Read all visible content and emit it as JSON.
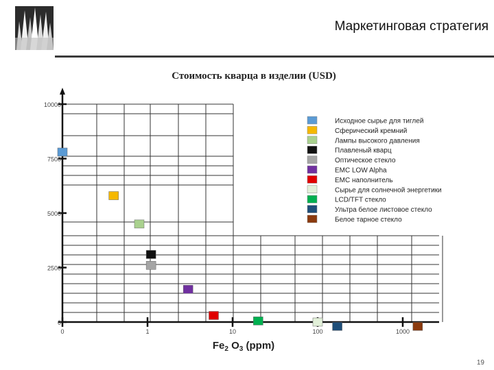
{
  "slide": {
    "title": "Маркетинговая стратегия",
    "page_number": "19"
  },
  "chart_data": {
    "type": "scatter",
    "title": "Стоимость кварца в изделии (USD)",
    "xlabel_parts": [
      "Fe",
      "2",
      " O",
      "3",
      " (ppm)"
    ],
    "xscale": "log",
    "x_ticks": [
      {
        "value": 0.1,
        "label": "0"
      },
      {
        "value": 1,
        "label": "1"
      },
      {
        "value": 10,
        "label": "10"
      },
      {
        "value": 100,
        "label": "100"
      },
      {
        "value": 1000,
        "label": "1000"
      }
    ],
    "y_ticks": [
      {
        "value": 0,
        "label": "0"
      },
      {
        "value": 2500,
        "label": "2500"
      },
      {
        "value": 5000,
        "label": "5000"
      },
      {
        "value": 7500,
        "label": "7500"
      },
      {
        "value": 10000,
        "label": "10000"
      }
    ],
    "ylim": [
      0,
      10000
    ],
    "grid": true,
    "legend_position": "right",
    "series": [
      {
        "name": "Исходное сырье для тиглей",
        "color": "#5b9bd5",
        "x": 0.1,
        "y": 7800
      },
      {
        "name": "Сферический кремний",
        "color": "#f5b800",
        "x": 0.4,
        "y": 5800
      },
      {
        "name": "Лампы высокого давления",
        "color": "#a9d18e",
        "x": 0.8,
        "y": 4500
      },
      {
        "name": "Плавленый кварц",
        "color": "#111111",
        "x": 1.1,
        "y": 3100
      },
      {
        "name": "Оптическое стекло",
        "color": "#a5a5a5",
        "x": 1.1,
        "y": 2600
      },
      {
        "name": "EMC LOW Alpha",
        "color": "#7030a0",
        "x": 3,
        "y": 1500
      },
      {
        "name": "EMC наполнитель",
        "color": "#e00000",
        "x": 6,
        "y": 300
      },
      {
        "name": "Сырье для солнечной энергетики",
        "color": "#e2f0d9",
        "x": 100,
        "y": 0
      },
      {
        "name": "LCD/TFT стекло",
        "color": "#00b050",
        "x": 20,
        "y": 50
      },
      {
        "name": "Ультра белое листовое стекло",
        "color": "#1f4e79",
        "x": 170,
        "y": -200
      },
      {
        "name": "Белое тарное стекло",
        "color": "#8b3a0e",
        "x": 1500,
        "y": -200
      }
    ]
  }
}
